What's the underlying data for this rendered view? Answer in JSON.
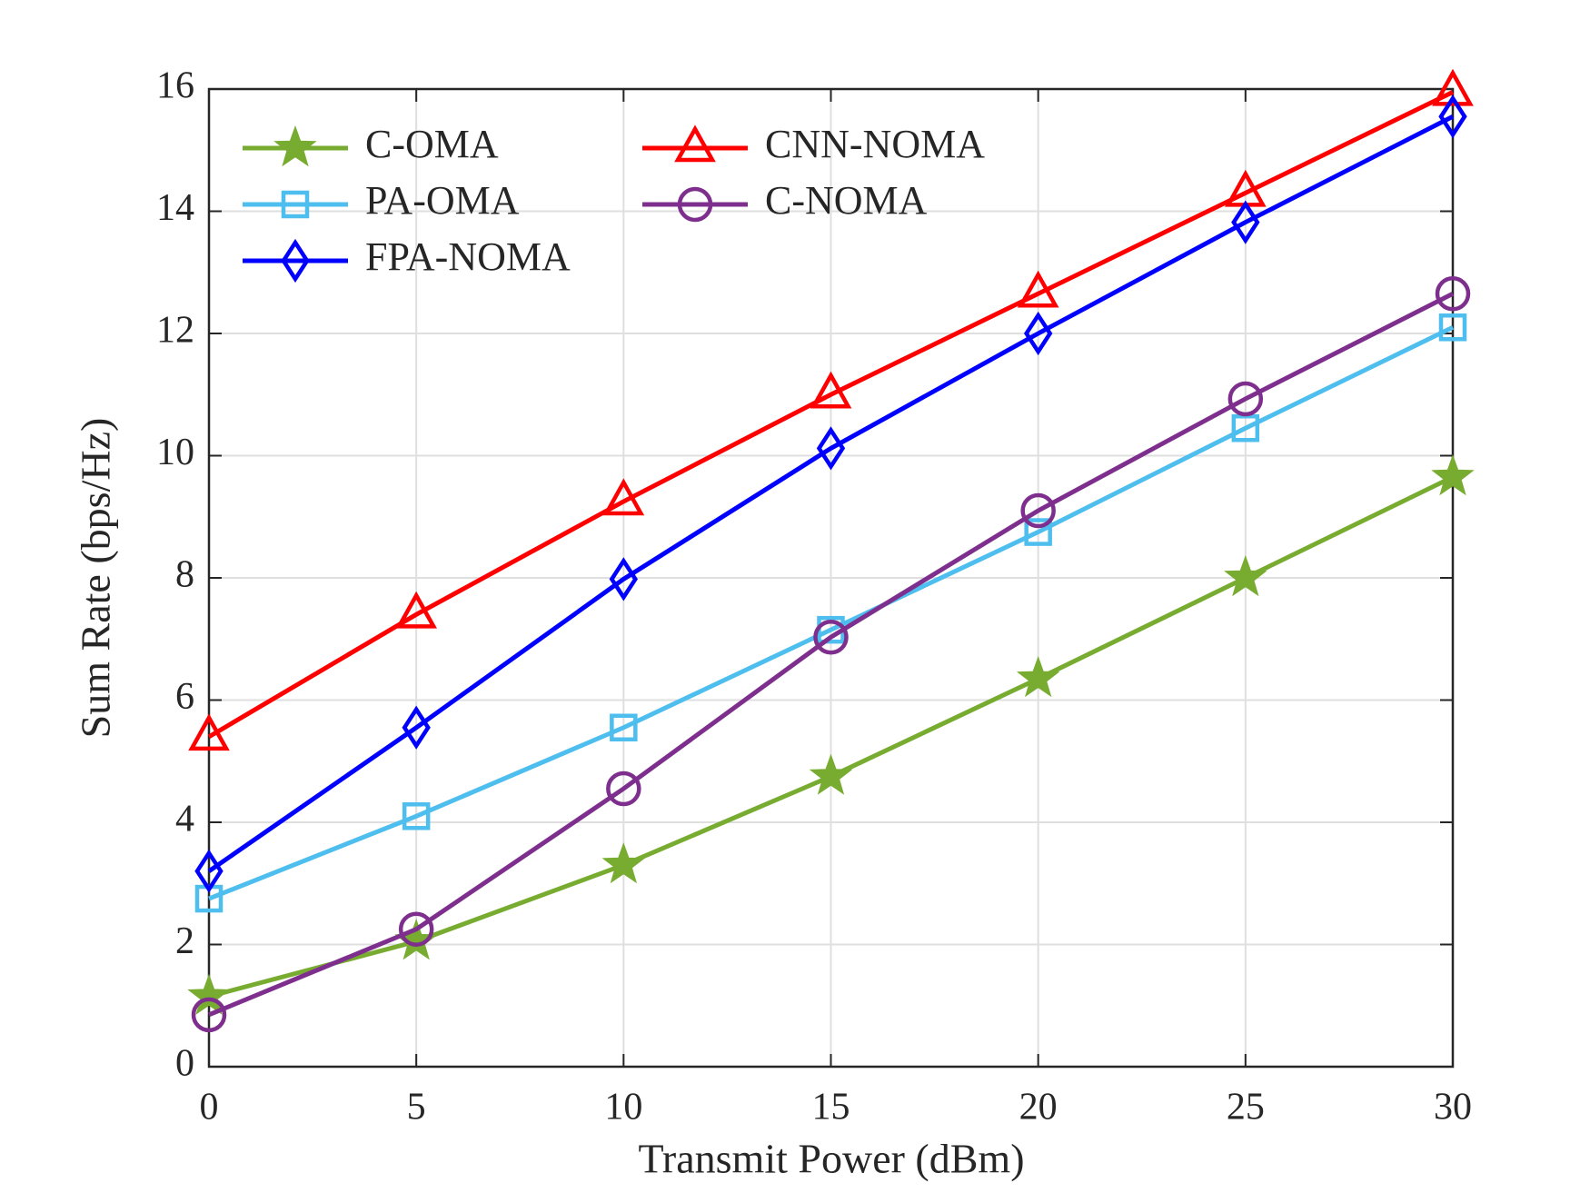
{
  "chart_data": {
    "type": "line",
    "xlabel": "Transmit Power (dBm)",
    "ylabel": "Sum Rate (bps/Hz)",
    "x": [
      0,
      5,
      10,
      15,
      20,
      25,
      30
    ],
    "xlim": [
      0,
      30
    ],
    "xticks": [
      0,
      5,
      10,
      15,
      20,
      25,
      30
    ],
    "ylim": [
      0,
      16
    ],
    "yticks": [
      0,
      2,
      4,
      6,
      8,
      10,
      12,
      14,
      16
    ],
    "grid": true,
    "legend": "upper left",
    "series": [
      {
        "name": "C-OMA",
        "color": "#77ac30",
        "marker": "star",
        "values": [
          1.15,
          2.05,
          3.3,
          4.75,
          6.35,
          8.0,
          9.65
        ]
      },
      {
        "name": "CNN-NOMA",
        "color": "#ff0000",
        "marker": "triangle",
        "values": [
          5.4,
          7.4,
          9.25,
          11.0,
          12.65,
          14.3,
          15.95
        ]
      },
      {
        "name": "PA-OMA",
        "color": "#4dbeee",
        "marker": "square",
        "values": [
          2.75,
          4.1,
          5.55,
          7.15,
          8.75,
          10.45,
          12.1
        ]
      },
      {
        "name": "C-NOMA",
        "color": "#7e2f8e",
        "marker": "circle",
        "values": [
          0.85,
          2.25,
          4.55,
          7.03,
          9.1,
          10.93,
          12.65
        ]
      },
      {
        "name": "FPA-NOMA",
        "color": "#0000ff",
        "marker": "diamond",
        "values": [
          3.2,
          5.55,
          7.98,
          10.12,
          12.0,
          13.82,
          15.55
        ]
      }
    ]
  }
}
